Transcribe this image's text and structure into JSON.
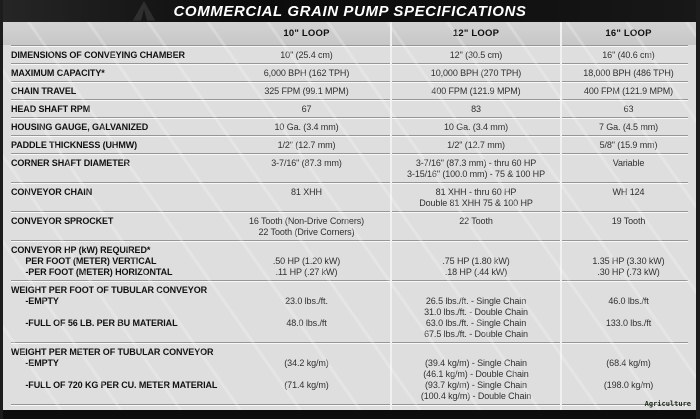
{
  "title": "COMMERCIAL GRAIN PUMP SPECIFICATIONS",
  "watermark": "Agriculture",
  "columns": [
    "10\" LOOP",
    "12\" LOOP",
    "16\" LOOP"
  ],
  "rows": [
    {
      "label": [
        "DIMENSIONS OF CONVEYING CHAMBER"
      ],
      "values": [
        [
          "10\" (25.4 cm)"
        ],
        [
          "12\" (30.5 cm)"
        ],
        [
          "16\" (40.6 cm)"
        ]
      ]
    },
    {
      "label": [
        "MAXIMUM CAPACITY*"
      ],
      "values": [
        [
          "6,000 BPH (162 TPH)"
        ],
        [
          "10,000 BPH (270 TPH)"
        ],
        [
          "18,000 BPH (486 TPH)"
        ]
      ]
    },
    {
      "label": [
        "CHAIN TRAVEL"
      ],
      "values": [
        [
          "325 FPM (99.1 MPM)"
        ],
        [
          "400 FPM (121.9 MPM)"
        ],
        [
          "400 FPM (121.9 MPM)"
        ]
      ]
    },
    {
      "label": [
        "HEAD SHAFT RPM"
      ],
      "values": [
        [
          "67"
        ],
        [
          "83"
        ],
        [
          "63"
        ]
      ]
    },
    {
      "label": [
        "HOUSING GAUGE, GALVANIZED"
      ],
      "values": [
        [
          "10 Ga. (3.4 mm)"
        ],
        [
          "10 Ga. (3.4 mm)"
        ],
        [
          "7 Ga. (4.5 mm)"
        ]
      ]
    },
    {
      "label": [
        "PADDLE THICKNESS (UHMW)"
      ],
      "values": [
        [
          "1/2\" (12.7 mm)"
        ],
        [
          "1/2\" (12.7 mm)"
        ],
        [
          "5/8\" (15.9 mm)"
        ]
      ]
    },
    {
      "label": [
        "CORNER SHAFT DIAMETER"
      ],
      "values": [
        [
          "3-7/16\" (87.3 mm)"
        ],
        [
          "3-7/16\" (87.3 mm) - thru 60 HP",
          "3-15/16\" (100.0 mm) - 75 & 100 HP"
        ],
        [
          "Variable"
        ]
      ]
    },
    {
      "label": [
        "CONVEYOR CHAIN"
      ],
      "values": [
        [
          "81 XHH"
        ],
        [
          "81 XHH - thru 60 HP",
          "Double 81 XHH 75 & 100 HP"
        ],
        [
          "WH 124"
        ]
      ]
    },
    {
      "label": [
        "CONVEYOR SPROCKET"
      ],
      "values": [
        [
          "16 Tooth (Non-Drive Corners)",
          "22 Tooth (Drive Corners)"
        ],
        [
          "22 Tooth"
        ],
        [
          "19 Tooth"
        ]
      ]
    },
    {
      "label": [
        "CONVEYOR HP (kW) REQUIRED*",
        "      PER FOOT (METER) VERTICAL",
        "      -PER FOOT (METER) HORIZONTAL"
      ],
      "values": [
        [
          "",
          ".50 HP (1.20 kW)",
          ".11 HP (.27 kW)"
        ],
        [
          "",
          ".75 HP (1.80 kW)",
          ".18 HP (.44 kW)"
        ],
        [
          "",
          "1.35 HP (3.30 kW)",
          ".30 HP (.73 kW)"
        ]
      ]
    },
    {
      "label": [
        "WEIGHT PER FOOT OF TUBULAR CONVEYOR",
        "      -EMPTY",
        "",
        "      -FULL OF 56 LB. PER BU MATERIAL"
      ],
      "values": [
        [
          "",
          "23.0 lbs./ft.",
          "",
          "48.0 lbs./ft"
        ],
        [
          "",
          "26.5 lbs./ft. - Single Chain",
          "31.0 lbs./ft. - Double Chain",
          "63.0 lbs./ft. - Single Chain",
          "67.5 lbs./ft. - Double Chain"
        ],
        [
          "",
          "46.0 lbs./ft",
          "",
          "133.0 lbs./ft"
        ]
      ]
    },
    {
      "label": [
        "WEIGHT PER METER OF TUBULAR CONVEYOR",
        "      -EMPTY",
        "",
        "      -FULL OF 720 KG PER CU. METER MATERIAL"
      ],
      "values": [
        [
          "",
          "(34.2 kg/m)",
          "",
          "(71.4 kg/m)"
        ],
        [
          "",
          "(39.4 kg/m) - Single Chain",
          "(46.1 kg/m) - Double Chain",
          "(93.7 kg/m) - Single Chain",
          "(100.4 kg/m) - Double Chain"
        ],
        [
          "",
          "(68.4 kg/m)",
          "",
          "(198.0 kg/m)"
        ]
      ]
    }
  ]
}
